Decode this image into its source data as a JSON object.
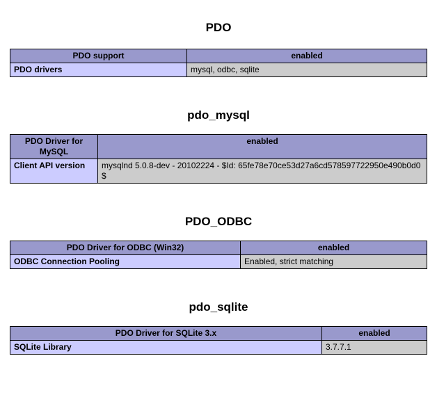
{
  "colors": {
    "header_bg": "#9999cc",
    "key_bg": "#ccccff",
    "value_bg": "#cccccc",
    "border": "#000000",
    "text": "#000000",
    "page_bg": "#ffffff"
  },
  "sections": [
    {
      "heading": "PDO",
      "table": {
        "header": [
          "PDO support",
          "enabled"
        ],
        "rows": [
          [
            "PDO drivers",
            "mysql, odbc, sqlite"
          ]
        ]
      }
    },
    {
      "heading": "pdo_mysql",
      "table": {
        "header": [
          "PDO Driver for MySQL",
          "enabled"
        ],
        "rows": [
          [
            "Client API version",
            "mysqlnd 5.0.8-dev - 20102224 - $Id: 65fe78e70ce53d27a6cd578597722950e490b0d0 $"
          ]
        ]
      }
    },
    {
      "heading": "PDO_ODBC",
      "table": {
        "header": [
          "PDO Driver for ODBC (Win32)",
          "enabled"
        ],
        "rows": [
          [
            "ODBC Connection Pooling",
            "Enabled, strict matching"
          ]
        ]
      }
    },
    {
      "heading": "pdo_sqlite",
      "table": {
        "header": [
          "PDO Driver for SQLite 3.x",
          "enabled"
        ],
        "rows": [
          [
            "SQLite Library",
            "3.7.7.1"
          ]
        ]
      }
    }
  ]
}
